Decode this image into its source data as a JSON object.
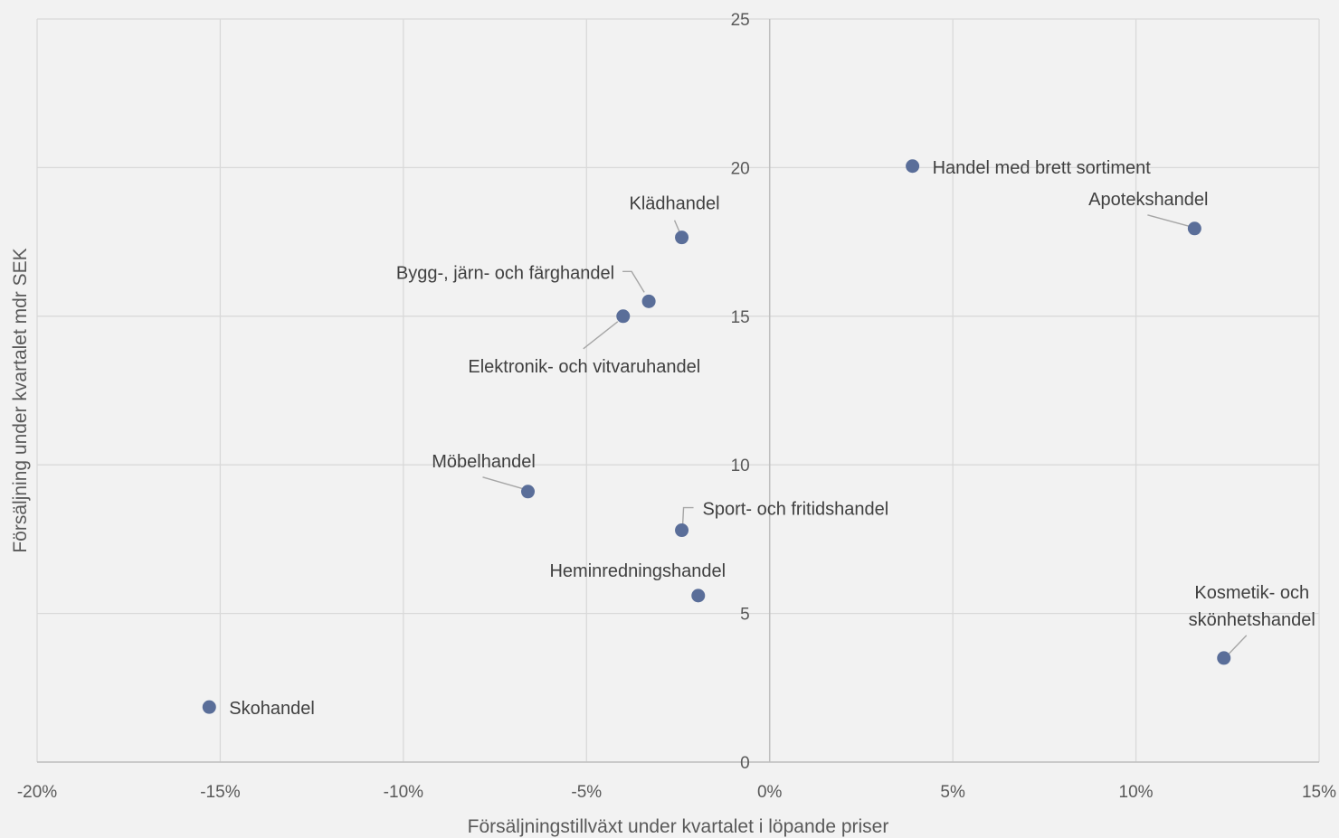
{
  "chart_data": {
    "type": "scatter",
    "xlabel": "Försäljningstillväxt under kvartalet i löpande priser",
    "ylabel": "Försäljning under kvartalet mdr SEK",
    "xlim": [
      -20,
      15
    ],
    "ylim": [
      0,
      25
    ],
    "x_ticks": [
      -20,
      -15,
      -10,
      -5,
      0,
      5,
      10,
      15
    ],
    "x_tick_labels": [
      "-20%",
      "-15%",
      "-10%",
      "-5%",
      "0%",
      "5%",
      "10%",
      "15%"
    ],
    "y_ticks": [
      0,
      5,
      10,
      15,
      20,
      25
    ],
    "y_tick_labels": [
      "0",
      "5",
      "10",
      "15",
      "20",
      "25"
    ],
    "grid": true,
    "legend": "none",
    "marker_color": "#5a6e99",
    "grid_color": "#d9d9d9",
    "points": [
      {
        "label": [
          "Handel med brett sortiment"
        ],
        "x": 3.9,
        "y": 20.05
      },
      {
        "label": [
          "Apotekshandel"
        ],
        "x": 11.6,
        "y": 17.95
      },
      {
        "label": [
          "Klädhandel"
        ],
        "x": -2.4,
        "y": 17.65
      },
      {
        "label": [
          "Bygg-, järn- och färghandel"
        ],
        "x": -3.3,
        "y": 15.5
      },
      {
        "label": [
          "Elektronik- och vitvaruhandel"
        ],
        "x": -4.0,
        "y": 15.0
      },
      {
        "label": [
          "Möbelhandel"
        ],
        "x": -6.6,
        "y": 9.1
      },
      {
        "label": [
          "Sport- och fritidshandel"
        ],
        "x": -2.4,
        "y": 7.8
      },
      {
        "label": [
          "Heminredningshandel"
        ],
        "x": -1.95,
        "y": 5.6
      },
      {
        "label": [
          "Kosmetik- och",
          "skönhetshandel"
        ],
        "x": 12.4,
        "y": 3.5
      },
      {
        "label": [
          "Skohandel"
        ],
        "x": -15.3,
        "y": 1.85
      }
    ]
  }
}
